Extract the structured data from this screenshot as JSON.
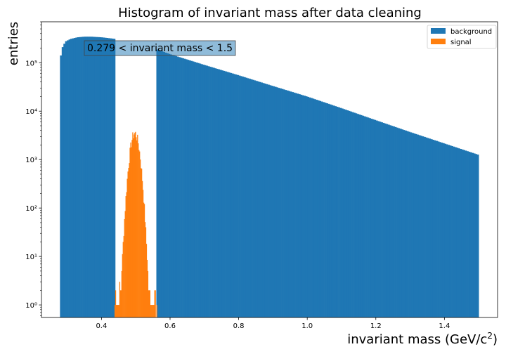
{
  "chart_data": {
    "type": "bar",
    "title": "Histogram of invariant mass after data cleaning",
    "xlabel": "invariant mass (GeV/c²)",
    "ylabel": "entries",
    "xlim": [
      0.225,
      1.555
    ],
    "ylim": [
      0.55,
      700000
    ],
    "yscale": "log",
    "grid": false,
    "legend_position": "top-right",
    "x_ticks": [
      0.4,
      0.6,
      0.8,
      1.0,
      1.2,
      1.4
    ],
    "x_tick_labels": [
      "0.4",
      "0.6",
      "0.8",
      "1.0",
      "1.2",
      "1.4"
    ],
    "y_ticks": [
      1,
      10,
      100,
      1000,
      10000,
      100000
    ],
    "y_tick_labels": [
      "10⁰",
      "10¹",
      "10²",
      "10³",
      "10⁴",
      "10⁵"
    ],
    "annotation": "0.279 < invariant mass < 1.5",
    "series": [
      {
        "name": "background",
        "color": "#1f77b4",
        "bin_width": 0.005,
        "ranges": [
          [
            0.279,
            0.44
          ],
          [
            0.56,
            1.5
          ]
        ],
        "profile_points": [
          [
            0.279,
            110000
          ],
          [
            0.285,
            200000
          ],
          [
            0.295,
            275000
          ],
          [
            0.31,
            310000
          ],
          [
            0.33,
            335000
          ],
          [
            0.35,
            345000
          ],
          [
            0.37,
            345000
          ],
          [
            0.4,
            335000
          ],
          [
            0.44,
            310000
          ],
          [
            0.56,
            190000
          ],
          [
            0.6,
            150000
          ],
          [
            0.7,
            90000
          ],
          [
            0.8,
            55000
          ],
          [
            0.9,
            33000
          ],
          [
            1.0,
            20000
          ],
          [
            1.1,
            11500
          ],
          [
            1.2,
            6500
          ],
          [
            1.3,
            3700
          ],
          [
            1.4,
            2150
          ],
          [
            1.5,
            1250
          ]
        ]
      },
      {
        "name": "signal",
        "color": "#ff7f0e",
        "bin_width": 0.002,
        "range": [
          0.438,
          0.562
        ],
        "profile": {
          "peak_x": 0.497,
          "peak_y": 3500,
          "sigma": 0.0105
        },
        "noise_seed": 7
      }
    ]
  }
}
